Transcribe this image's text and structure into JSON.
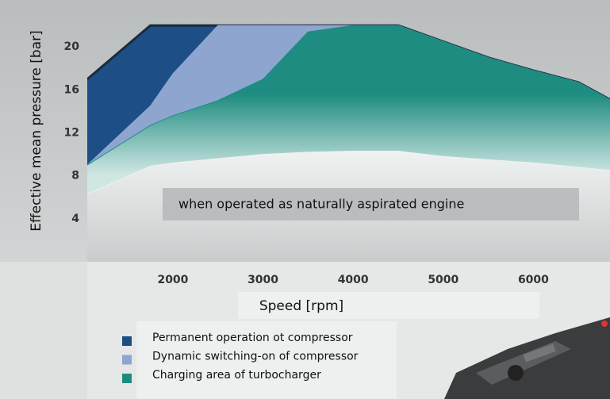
{
  "chart_data": {
    "type": "area",
    "x_label": "Speed [rpm]",
    "y_label": "Effective mean pressure [bar]",
    "x": [
      1050,
      1750,
      2000,
      2500,
      3000,
      3500,
      4000,
      4500,
      5000,
      5500,
      6000,
      6500,
      6850
    ],
    "series": [
      {
        "name": "Permanent operation ot compressor",
        "color": "#1d4f86",
        "values": [
          17,
          22,
          22,
          22,
          22,
          22,
          22,
          22,
          20.5,
          19,
          17.8,
          16.7,
          15.1
        ]
      },
      {
        "name": "Dynamic switching-on of compressor",
        "color": "#8ea6cf",
        "values": [
          9,
          14.5,
          17.5,
          22,
          22,
          22,
          22,
          22,
          20.5,
          19,
          17.8,
          16.7,
          15.1
        ]
      },
      {
        "name": "Charging area of turbocharger",
        "color": "#1e8c80",
        "values": [
          9,
          12.7,
          13.6,
          15,
          17,
          21.4,
          22,
          22,
          20.5,
          19,
          17.8,
          16.7,
          15.1
        ]
      }
    ],
    "baseline": {
      "name": "when operated as naturally aspirated engine",
      "color": "#eef0f0",
      "values": [
        6.3,
        8.9,
        9.2,
        9.6,
        10,
        10.2,
        10.3,
        10.3,
        9.8,
        9.5,
        9.2,
        8.8,
        8.5
      ]
    },
    "xlim": [
      1050,
      6850
    ],
    "ylim": [
      0,
      24
    ],
    "xticks": [
      2000,
      3000,
      4000,
      5000,
      6000
    ],
    "yticks": [
      4,
      8,
      12,
      16,
      20
    ]
  }
}
